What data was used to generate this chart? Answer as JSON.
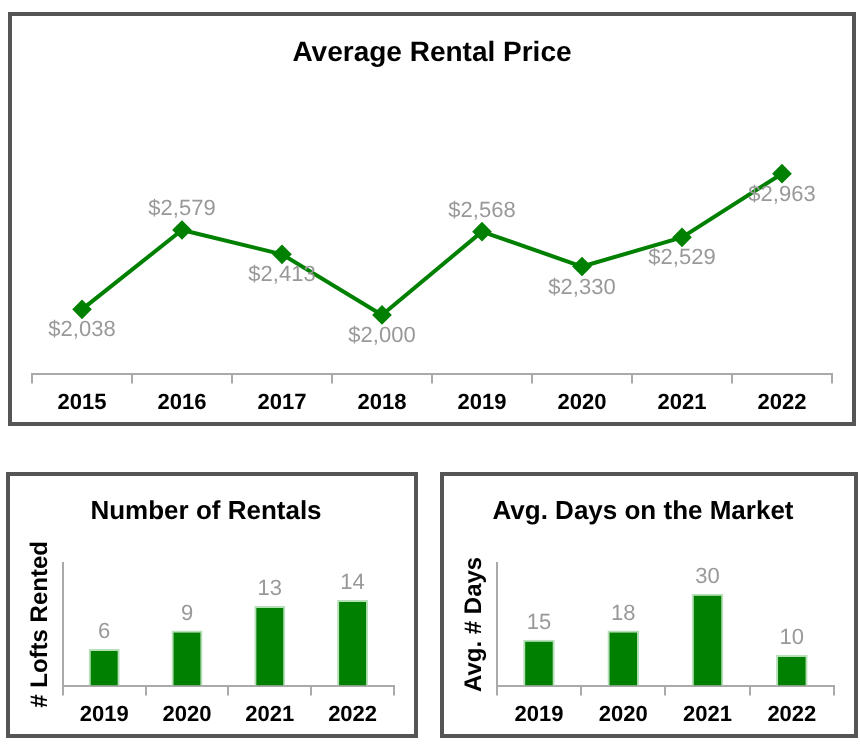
{
  "chart_data": [
    {
      "type": "line",
      "title": "Average Rental Price",
      "categories": [
        "2015",
        "2016",
        "2017",
        "2018",
        "2019",
        "2020",
        "2021",
        "2022"
      ],
      "values": [
        2038,
        2579,
        2413,
        2000,
        2568,
        2330,
        2529,
        2963
      ],
      "value_labels": [
        "$2,038",
        "$2,579",
        "$2,413",
        "$2,000",
        "$2,568",
        "$2,330",
        "$2,529",
        "$2,963"
      ],
      "color": "#008000",
      "marker": "diamond",
      "tick_labels": "x"
    },
    {
      "type": "bar",
      "title": "Number of Rentals",
      "ylabel": "# Lofts Rented",
      "categories": [
        "2019",
        "2020",
        "2021",
        "2022"
      ],
      "values": [
        6,
        9,
        13,
        14
      ],
      "color": "#008000",
      "data_labels": true,
      "tick_labels": "x"
    },
    {
      "type": "bar",
      "title": "Avg. Days on the Market",
      "ylabel": "Avg. # Days",
      "categories": [
        "2019",
        "2020",
        "2021",
        "2022"
      ],
      "values": [
        15,
        18,
        30,
        10
      ],
      "color": "#008000",
      "data_labels": true,
      "tick_labels": "x"
    }
  ]
}
